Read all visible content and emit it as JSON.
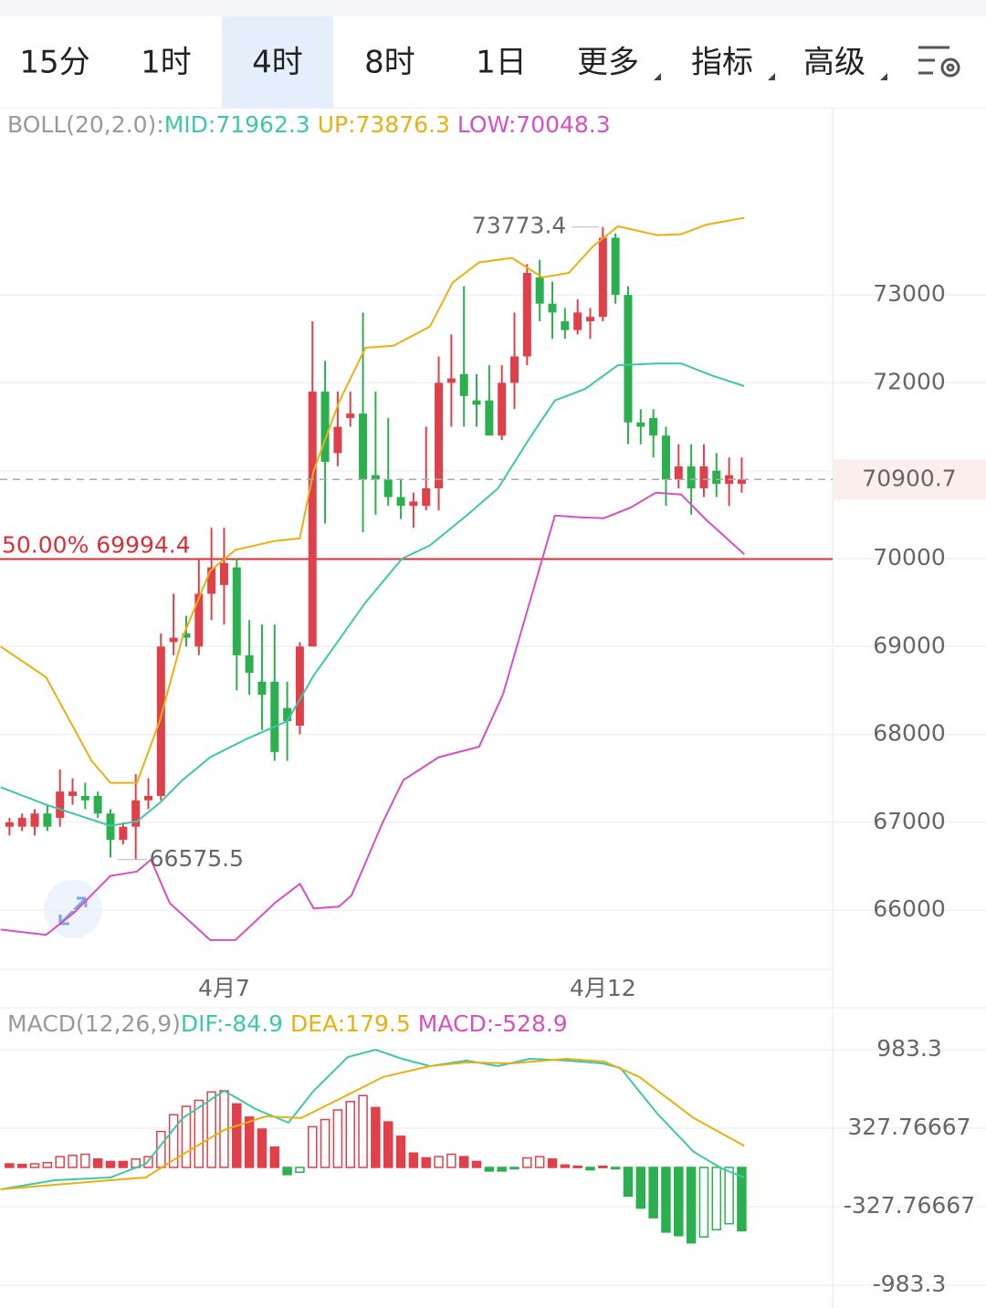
{
  "tabs": [
    "15分",
    "1时",
    "4时",
    "8时",
    "1日",
    "更多",
    "指标",
    "高级"
  ],
  "active_tab": 2,
  "chart_data": [
    {
      "type": "candlestick",
      "header": "BOLL(20,2.0):",
      "categories": [
        null,
        null,
        null,
        null,
        null,
        null,
        null,
        null,
        null,
        null,
        null,
        null,
        null,
        null,
        null,
        null,
        null,
        "4月7",
        null,
        null,
        null,
        null,
        null,
        null,
        null,
        null,
        null,
        null,
        null,
        null,
        null,
        null,
        null,
        null,
        null,
        null,
        null,
        null,
        null,
        null,
        null,
        null,
        null,
        null,
        null,
        null,
        null,
        "4月12",
        null,
        null,
        null,
        null,
        null,
        null,
        null,
        null,
        null,
        null,
        null
      ],
      "open": [
        66950,
        66950,
        66950,
        67100,
        67050,
        67300,
        67300,
        67300,
        67100,
        66800,
        66950,
        67250,
        67300,
        69050,
        69150,
        69000,
        69600,
        69700,
        69900,
        68900,
        68600,
        68600,
        68300,
        68100,
        69000,
        71900,
        71200,
        71600,
        71650,
        70950,
        70900,
        70700,
        70600,
        70600,
        70800,
        72000,
        72100,
        71800,
        71800,
        71400,
        72000,
        72300,
        73200,
        72900,
        72700,
        72600,
        72700,
        72750,
        73650,
        73000,
        71550,
        71600,
        71400,
        70900,
        71050,
        70800,
        71000,
        70850,
        70850
      ],
      "close": [
        67000,
        67050,
        67100,
        66950,
        67350,
        67350,
        67250,
        67100,
        66800,
        66950,
        67250,
        67300,
        69000,
        69100,
        69100,
        69600,
        69900,
        69950,
        68900,
        68700,
        68450,
        67800,
        68150,
        69000,
        71900,
        71100,
        71500,
        71650,
        70900,
        70900,
        70700,
        70600,
        70650,
        70800,
        72000,
        72050,
        71850,
        71750,
        71400,
        72000,
        72300,
        73250,
        72900,
        72800,
        72600,
        72800,
        72750,
        73650,
        73000,
        71550,
        71500,
        71400,
        70900,
        71050,
        70800,
        71050,
        70850,
        70950,
        70900.7
      ],
      "high": [
        67050,
        67100,
        67150,
        67200,
        67600,
        67500,
        67450,
        67350,
        67150,
        67000,
        67550,
        67500,
        69150,
        69600,
        69350,
        70000,
        70350,
        70350,
        70000,
        69300,
        69250,
        69250,
        68600,
        69050,
        72700,
        72250,
        71900,
        71900,
        72800,
        71900,
        71600,
        70900,
        70750,
        71500,
        72300,
        72550,
        73100,
        72100,
        72200,
        72200,
        72800,
        73350,
        73400,
        73150,
        72850,
        72950,
        72850,
        73773.4,
        73700,
        73100,
        71700,
        71700,
        71500,
        71300,
        71300,
        71300,
        71200,
        71150,
        71150
      ],
      "low": [
        66850,
        66900,
        66850,
        66900,
        66950,
        67200,
        67150,
        67050,
        66600,
        66750,
        66575.5,
        67150,
        67250,
        68900,
        69000,
        68900,
        69300,
        69250,
        68500,
        68450,
        68050,
        67700,
        67700,
        68000,
        69000,
        70400,
        71050,
        71500,
        70300,
        70500,
        70600,
        70450,
        70350,
        70550,
        70550,
        71500,
        71500,
        71500,
        71400,
        71350,
        71700,
        72200,
        72700,
        72500,
        72500,
        72550,
        72500,
        72700,
        72900,
        71300,
        71300,
        71150,
        70600,
        70800,
        70500,
        70700,
        70700,
        70600,
        70750
      ],
      "up_color": "#e0404a",
      "down_color": "#2bb04f",
      "overlays": [
        {
          "legend_label": "MID:71962.3",
          "color": "#3cc8a8",
          "x": [
            -0.7,
            2.9,
            8,
            10.1,
            11.9,
            13.7,
            15.9,
            18.8,
            22,
            24.1,
            28.2,
            31.1,
            33.3,
            36.2,
            38.7,
            41.2,
            43.2,
            45.6,
            48.2,
            51.2,
            53.2,
            55.7,
            58.2
          ],
          "values": [
            67400,
            67200,
            66960,
            67010,
            67220,
            67480,
            67740,
            67950,
            68150,
            68670,
            69500,
            70000,
            70150,
            70490,
            70800,
            71370,
            71800,
            71930,
            72200,
            72220,
            72220,
            72080,
            71962.3
          ]
        },
        {
          "legend_label": "UP:73876.3",
          "color": "#e8b010",
          "x": [
            -0.7,
            2.9,
            6.5,
            8,
            10.1,
            11.9,
            13.7,
            15.9,
            17.9,
            21,
            23,
            24.1,
            26.1,
            28.2,
            30.4,
            33.3,
            35.1,
            37.2,
            39.8,
            42.2,
            44.3,
            46.2,
            48.2,
            51.3,
            53.2,
            55.2,
            58.2
          ],
          "values": [
            69000,
            68650,
            67700,
            67450,
            67450,
            68150,
            69100,
            69860,
            70100,
            70200,
            70230,
            71000,
            71780,
            72400,
            72420,
            72640,
            73140,
            73370,
            73420,
            73200,
            73250,
            73550,
            73780,
            73680,
            73690,
            73800,
            73876.3
          ]
        },
        {
          "legend_label": "LOW:70048.3",
          "color": "#d84fc0",
          "x": [
            -0.7,
            2.9,
            5.1,
            8,
            10.1,
            11.2,
            12.7,
            15.9,
            17.9,
            21,
            23,
            24.1,
            26.1,
            27.1,
            29.6,
            31.2,
            34,
            37.2,
            39.1,
            41.2,
            43.2,
            45.2,
            47.1,
            49.2,
            51.2,
            53.2,
            55.2,
            58.2
          ],
          "values": [
            65780,
            65720,
            65970,
            66390,
            66440,
            66575.5,
            66080,
            65660,
            65660,
            66080,
            66300,
            66020,
            66040,
            66170,
            67010,
            67480,
            67740,
            67860,
            68460,
            69500,
            70490,
            70470,
            70460,
            70580,
            70750,
            70730,
            70440,
            70048.3
          ]
        }
      ],
      "high_marker": {
        "x": 47,
        "value": 73773.4
      },
      "low_marker": {
        "x": 10,
        "value": 66575.5
      },
      "level_line": {
        "label": "50.00% 69994.4",
        "value": 69994.4,
        "color": "#d8313a"
      },
      "last_price": {
        "value": 70900.7,
        "color": "#e0404a"
      },
      "xlim": [
        -0.75,
        65.2
      ],
      "ylim": [
        65327,
        75109
      ],
      "yticks": [
        66000,
        67000,
        68000,
        69000,
        70000,
        71000,
        72000,
        73000
      ],
      "grid": true
    },
    {
      "type": "macd",
      "header": "MACD(12,26,9)",
      "values": [
        30,
        25,
        30,
        40,
        90,
        100,
        110,
        70,
        50,
        50,
        70,
        90,
        300,
        440,
        510,
        560,
        630,
        640,
        530,
        420,
        320,
        170,
        -60,
        -40,
        340,
        400,
        480,
        550,
        600,
        500,
        380,
        260,
        120,
        80,
        90,
        110,
        90,
        50,
        -30,
        -30,
        -10,
        80,
        90,
        70,
        20,
        10,
        -20,
        10,
        -10,
        -240,
        -340,
        -420,
        -540,
        -570,
        -630,
        -580,
        -520,
        -470,
        -528.9
      ],
      "up_color": "#e0404a",
      "down_color": "#2bb04f",
      "bar_label": "MACD:-528.9",
      "bar_label_color": "#d84fc0",
      "series": [
        {
          "legend_label": "DIF:-84.9",
          "color": "#3cc8a8",
          "x": [
            -0.7,
            3.6,
            8,
            10.8,
            13.7,
            17,
            19.5,
            22.1,
            24.1,
            26.8,
            29,
            31.1,
            33.3,
            36.2,
            38.7,
            41.2,
            44.1,
            47,
            48.4,
            51.3,
            54.2,
            56.4,
            58.2
          ],
          "values": [
            -183,
            -107,
            -84,
            30,
            410,
            640,
            488,
            374,
            640,
            922,
            983,
            907,
            846,
            892,
            846,
            907,
            892,
            869,
            830,
            450,
            130,
            -8,
            -84.9
          ]
        },
        {
          "legend_label": "DEA:179.5",
          "color": "#e8b010",
          "x": [
            -0.7,
            3.6,
            8,
            10.8,
            13.7,
            17,
            20.3,
            23.1,
            26,
            29.6,
            33.3,
            36.2,
            39.8,
            44.1,
            47.1,
            49.9,
            54.2,
            58.2
          ],
          "values": [
            -183,
            -145,
            -107,
            -84,
            107,
            313,
            427,
            412,
            564,
            755,
            846,
            877,
            869,
            907,
            884,
            755,
            412,
            179.5
          ]
        }
      ],
      "xlim": [
        -0.75,
        65.2
      ],
      "ylim": [
        -1151,
        1326
      ],
      "yticks": [
        983.3,
        327.76667,
        -327.76667,
        -983.3
      ],
      "grid": true
    }
  ]
}
